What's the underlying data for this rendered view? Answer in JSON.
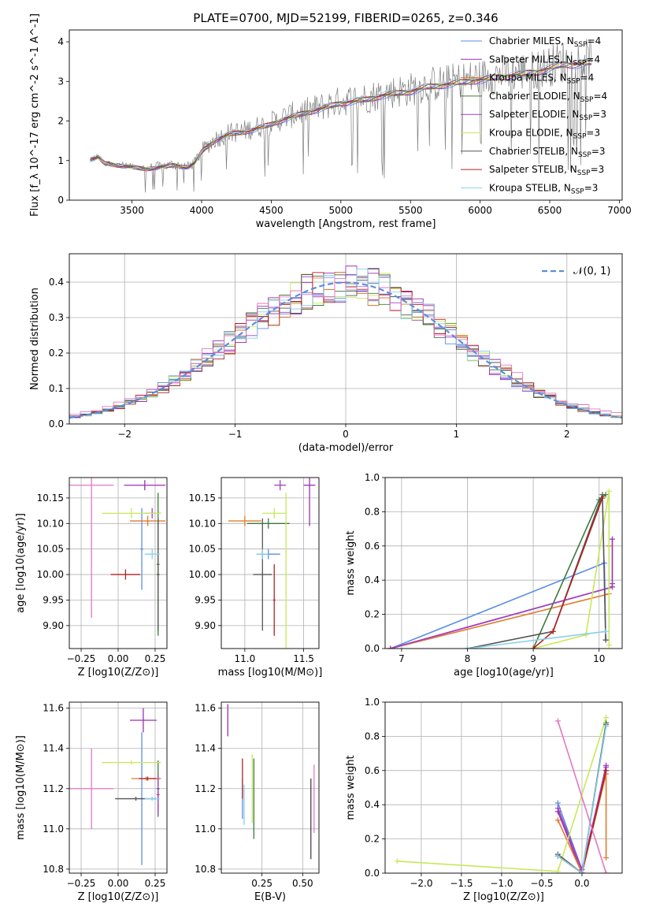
{
  "figure_title": "PLATE=0700, MJD=52199, FIBERID=0265, z=0.346",
  "colors": {
    "Chabrier MILES": "#5b8ee0",
    "Salpeter MILES": "#9b2fb5",
    "Kroupa MILES": "#e07a2a",
    "Chabrier ELODIE": "#3c7a3c",
    "Salpeter ELODIE": "#a13fbf",
    "Kroupa ELODIE": "#c8e85a",
    "Chabrier STELIB": "#555555",
    "Salpeter STELIB": "#b22222",
    "Kroupa STELIB": "#87ceeb",
    "normal": "#5b8ee0",
    "data": "#7f7f7f"
  },
  "chart_data": [
    {
      "id": "spectrum",
      "type": "line",
      "title": "PLATE=0700, MJD=52199, FIBERID=0265, z=0.346",
      "xlabel": "wavelength [Angstrom, rest frame]",
      "ylabel": "Flux [f_λ 10^-17 erg cm^-2 s^-1 A^-1]",
      "xlim": [
        3050,
        7020
      ],
      "ylim": [
        0,
        4.3
      ],
      "xticks": [
        "3500",
        "4000",
        "4500",
        "5000",
        "5500",
        "6000",
        "6500",
        "7000"
      ],
      "yticks": [
        "0",
        "1",
        "2",
        "3",
        "4"
      ],
      "grid": false,
      "legend_position": "top-right",
      "legend": [
        {
          "label": "Chabrier MILES, N",
          "sub": "SSP",
          "tail": "=4"
        },
        {
          "label": "Salpeter MILES, N",
          "sub": "SSP",
          "tail": "=4"
        },
        {
          "label": "Kroupa MILES, N",
          "sub": "SSP",
          "tail": "=4"
        },
        {
          "label": "Chabrier ELODIE, N",
          "sub": "SSP",
          "tail": "=4"
        },
        {
          "label": "Salpeter ELODIE, N",
          "sub": "SSP",
          "tail": "=3"
        },
        {
          "label": "Kroupa ELODIE, N",
          "sub": "SSP",
          "tail": "=3"
        },
        {
          "label": "Chabrier STELIB, N",
          "sub": "SSP",
          "tail": "=3"
        },
        {
          "label": "Salpeter STELIB, N",
          "sub": "SSP",
          "tail": "=3"
        },
        {
          "label": "Kroupa STELIB, N",
          "sub": "SSP",
          "tail": "=3"
        }
      ],
      "continuum": {
        "x": [
          3200,
          3260,
          3300,
          3400,
          3500,
          3600,
          3700,
          3800,
          3900,
          3950,
          4000,
          4100,
          4200,
          4300,
          4400,
          4500,
          4600,
          4700,
          4800,
          4900,
          5000,
          5100,
          5200,
          5300,
          5400,
          5500,
          5600,
          5700,
          5800,
          5900,
          6000,
          6100,
          6200,
          6300,
          6400,
          6500,
          6600,
          6700,
          6800
        ],
        "y": [
          1.05,
          1.1,
          0.95,
          0.9,
          0.85,
          0.8,
          0.85,
          0.9,
          0.85,
          0.95,
          1.25,
          1.55,
          1.7,
          1.75,
          1.85,
          1.95,
          2.1,
          2.2,
          2.3,
          2.4,
          2.5,
          2.55,
          2.6,
          2.7,
          2.75,
          2.8,
          2.9,
          2.95,
          3.0,
          3.05,
          3.1,
          3.15,
          3.2,
          3.25,
          3.3,
          3.4,
          3.5,
          3.5,
          3.55
        ]
      }
    },
    {
      "id": "residuals",
      "type": "line",
      "xlabel": "(data-model)/error",
      "ylabel": "Normed distribution",
      "xlim": [
        -2.5,
        2.5
      ],
      "ylim": [
        0,
        0.48
      ],
      "xticks": [
        "−2",
        "−1",
        "0",
        "1",
        "2"
      ],
      "yticks": [
        "0.0",
        "0.1",
        "0.2",
        "0.3",
        "0.4"
      ],
      "grid": true,
      "legend_position": "top-right",
      "legend": [
        {
          "label": "𝒩(0, 1)"
        }
      ],
      "normal_curve": "N(0,1)"
    },
    {
      "id": "age-vs-Z",
      "type": "scatter",
      "xlabel": "Z [log10(Z/Z⊙)]",
      "ylabel": "age  [log10(age/yr)]",
      "xlim": [
        -0.33,
        0.33
      ],
      "ylim": [
        9.855,
        10.19
      ],
      "xticks": [
        "−0.25",
        "0.00",
        "0.25"
      ],
      "yticks": [
        "9.90",
        "9.95",
        "10.00",
        "10.05",
        "10.10",
        "10.15"
      ],
      "grid": true,
      "points": [
        {
          "model": "Chabrier MILES",
          "x": 0.16,
          "y": 10.05,
          "xerr": 0.01,
          "yerr": 0.08
        },
        {
          "model": "Salpeter MILES",
          "x": 0.18,
          "y": 10.175,
          "xerr": 0.14,
          "yerr": 0.01
        },
        {
          "model": "Kroupa MILES",
          "x": 0.2,
          "y": 10.105,
          "xerr": 0.12,
          "yerr": 0.01
        },
        {
          "model": "Chabrier ELODIE",
          "x": 0.27,
          "y": 10.02,
          "xerr": 0.01,
          "yerr": 0.14
        },
        {
          "model": "Salpeter ELODIE",
          "x": 0.23,
          "y": 10.12,
          "xerr": 0.06,
          "yerr": 0.01
        },
        {
          "model": "Kroupa ELODIE",
          "x": 0.09,
          "y": 10.12,
          "xerr": 0.2,
          "yerr": 0.01
        },
        {
          "model": "Chabrier STELIB",
          "x": 0.27,
          "y": 10.0,
          "xerr": 0.01,
          "yerr": 0.11
        },
        {
          "model": "Salpeter STELIB",
          "x": 0.05,
          "y": 10.0,
          "xerr": 0.1,
          "yerr": 0.01
        },
        {
          "model": "Kroupa STELIB",
          "x": 0.23,
          "y": 10.04,
          "xerr": 0.05,
          "yerr": 0.01
        },
        {
          "model": "Kroupa MILES",
          "x": -0.18,
          "y": 10.175,
          "xerr": 0.15,
          "yerr": 0.26,
          "pink": true
        }
      ]
    },
    {
      "id": "age-vs-mass",
      "type": "scatter",
      "xlabel": "mass [log10(M/M⊙)]",
      "xlim": [
        10.8,
        11.63
      ],
      "ylim": [
        9.855,
        10.19
      ],
      "xticks": [
        "11.0",
        "11.5"
      ],
      "yticks": [
        "9.90",
        "9.95",
        "10.00",
        "10.05",
        "10.10",
        "10.15"
      ],
      "grid": true,
      "points": [
        {
          "model": "Chabrier MILES",
          "x": 11.2,
          "y": 10.04,
          "xerr": 0.1,
          "yerr": 0.01
        },
        {
          "model": "Salpeter MILES",
          "x": 11.55,
          "y": 10.175,
          "xerr": 0.05,
          "yerr": 0.08
        },
        {
          "model": "Kroupa MILES",
          "x": 11.0,
          "y": 10.105,
          "xerr": 0.14,
          "yerr": 0.01
        },
        {
          "model": "Chabrier ELODIE",
          "x": 11.2,
          "y": 10.1,
          "xerr": 0.18,
          "yerr": 0.01
        },
        {
          "model": "Salpeter ELODIE",
          "x": 11.3,
          "y": 10.175,
          "xerr": 0.05,
          "yerr": 0.01
        },
        {
          "model": "Kroupa ELODIE",
          "x": 11.25,
          "y": 10.12,
          "xerr": 0.1,
          "yerr": 0.01
        },
        {
          "model": "Chabrier STELIB",
          "x": 11.15,
          "y": 10.0,
          "xerr": 0.08,
          "yerr": 0.11
        },
        {
          "model": "Salpeter STELIB",
          "x": 11.25,
          "y": 9.95,
          "xerr": 0.01,
          "yerr": 0.07
        },
        {
          "model": "Kroupa STELIB",
          "x": 11.15,
          "y": 10.04,
          "xerr": 0.05,
          "yerr": 0.01
        },
        {
          "model": "Kroupa ELODIE",
          "x": 11.35,
          "y": 10.0,
          "xerr": 0.01,
          "yerr": 0.16
        }
      ]
    },
    {
      "id": "weight-vs-age",
      "type": "line",
      "xlabel": "age  [log10(age/yr)]",
      "ylabel": "mass weight",
      "xlim": [
        6.75,
        10.35
      ],
      "ylim": [
        0,
        1.0
      ],
      "xticks": [
        "7",
        "8",
        "9",
        "10"
      ],
      "yticks": [
        "0.0",
        "0.2",
        "0.4",
        "0.6",
        "0.8",
        "1.0"
      ],
      "grid": true,
      "series": [
        {
          "model": "Chabrier MILES",
          "x": [
            6.83,
            10.08,
            10.1
          ],
          "y": [
            0.0,
            0.5,
            0.05
          ]
        },
        {
          "model": "Salpeter MILES",
          "x": [
            6.83,
            10.2,
            10.2
          ],
          "y": [
            0.0,
            0.36,
            0.64
          ]
        },
        {
          "model": "Kroupa MILES",
          "x": [
            6.83,
            10.15,
            10.15
          ],
          "y": [
            0.0,
            0.32,
            0.6
          ]
        },
        {
          "model": "Chabrier ELODIE",
          "x": [
            9.0,
            10.0,
            10.1
          ],
          "y": [
            0.0,
            0.87,
            0.9
          ]
        },
        {
          "model": "Salpeter ELODIE",
          "x": [
            6.83,
            10.2,
            10.2
          ],
          "y": [
            0.0,
            0.36,
            0.38
          ]
        },
        {
          "model": "Kroupa ELODIE",
          "x": [
            9.0,
            9.8,
            10.15,
            10.15
          ],
          "y": [
            0.0,
            0.08,
            0.92,
            0.02
          ]
        },
        {
          "model": "Chabrier STELIB",
          "x": [
            8.0,
            9.3,
            10.05,
            10.1
          ],
          "y": [
            0.0,
            0.1,
            0.9,
            0.05
          ]
        },
        {
          "model": "Salpeter STELIB",
          "x": [
            9.0,
            9.3,
            10.05
          ],
          "y": [
            0.0,
            0.1,
            0.88
          ]
        },
        {
          "model": "Kroupa STELIB",
          "x": [
            8.0,
            10.1
          ],
          "y": [
            0.0,
            0.1
          ]
        }
      ]
    },
    {
      "id": "mass-vs-Z",
      "type": "scatter",
      "xlabel": "Z [log10(Z/Z⊙)]",
      "ylabel": "mass [log10(M/M⊙)]",
      "xlim": [
        -0.33,
        0.33
      ],
      "ylim": [
        10.78,
        11.63
      ],
      "xticks": [
        "−0.25",
        "0.00",
        "0.25"
      ],
      "yticks": [
        "10.8",
        "11.0",
        "11.2",
        "11.4",
        "11.6"
      ],
      "grid": true,
      "points": [
        {
          "model": "Chabrier MILES",
          "x": 0.16,
          "y": 11.15,
          "xerr": 0.01,
          "yerr": 0.33
        },
        {
          "model": "Salpeter MILES",
          "x": 0.17,
          "y": 11.54,
          "xerr": 0.09,
          "yerr": 0.06
        },
        {
          "model": "Kroupa MILES",
          "x": 0.19,
          "y": 11.25,
          "xerr": 0.1,
          "yerr": 0.01
        },
        {
          "model": "Chabrier ELODIE",
          "x": 0.27,
          "y": 11.2,
          "xerr": 0.01,
          "yerr": 0.14
        },
        {
          "model": "Salpeter ELODIE",
          "x": 0.27,
          "y": 11.17,
          "xerr": 0.01,
          "yerr": 0.1
        },
        {
          "model": "Kroupa ELODIE",
          "x": 0.09,
          "y": 11.33,
          "xerr": 0.2,
          "yerr": 0.01
        },
        {
          "model": "Chabrier STELIB",
          "x": 0.12,
          "y": 11.15,
          "xerr": 0.14,
          "yerr": 0.01
        },
        {
          "model": "Salpeter STELIB",
          "x": 0.2,
          "y": 11.25,
          "xerr": 0.06,
          "yerr": 0.01
        },
        {
          "model": "Kroupa STELIB",
          "x": 0.23,
          "y": 11.15,
          "xerr": 0.05,
          "yerr": 0.01
        },
        {
          "model": "Kroupa MILES",
          "x": -0.18,
          "y": 11.2,
          "xerr": 0.15,
          "yerr": 0.2,
          "pink": true
        }
      ]
    },
    {
      "id": "mass-vs-ebv",
      "type": "scatter",
      "xlabel": "E(B-V)",
      "xlim": [
        0.0,
        0.6
      ],
      "ylim": [
        10.78,
        11.63
      ],
      "xticks": [
        "0.25",
        "0.50"
      ],
      "yticks": [
        "10.8",
        "11.0",
        "11.2",
        "11.4",
        "11.6"
      ],
      "grid": true,
      "points": [
        {
          "model": "Chabrier MILES",
          "x": 0.13,
          "y": 11.15,
          "xerr": 0.0,
          "yerr": 0.1
        },
        {
          "model": "Salpeter MILES",
          "x": 0.04,
          "y": 11.54,
          "xerr": 0.0,
          "yerr": 0.08
        },
        {
          "model": "Kroupa MILES",
          "x": 0.55,
          "y": 11.2,
          "xerr": 0.0,
          "yerr": 0.05
        },
        {
          "model": "Chabrier ELODIE",
          "x": 0.2,
          "y": 11.15,
          "xerr": 0.0,
          "yerr": 0.2
        },
        {
          "model": "Salpeter ELODIE",
          "x": 0.55,
          "y": 11.05,
          "xerr": 0.0,
          "yerr": 0.2
        },
        {
          "model": "Kroupa ELODIE",
          "x": 0.19,
          "y": 11.2,
          "xerr": 0.0,
          "yerr": 0.17
        },
        {
          "model": "Chabrier STELIB",
          "x": 0.55,
          "y": 11.05,
          "xerr": 0.0,
          "yerr": 0.2
        },
        {
          "model": "Salpeter STELIB",
          "x": 0.13,
          "y": 11.25,
          "xerr": 0.0,
          "yerr": 0.1
        },
        {
          "model": "Kroupa STELIB",
          "x": 0.14,
          "y": 11.12,
          "xerr": 0.0,
          "yerr": 0.1
        },
        {
          "model": "Kroupa MILES",
          "x": 0.57,
          "y": 11.15,
          "xerr": 0.0,
          "yerr": 0.17,
          "pink": true
        }
      ]
    },
    {
      "id": "weight-vs-Z",
      "type": "line",
      "xlabel": "Z [log10(Z/Z⊙)]",
      "ylabel": "mass weight",
      "xlim": [
        -2.45,
        0.5
      ],
      "ylim": [
        0,
        1.0
      ],
      "xticks": [
        "−2.0",
        "−1.5",
        "−1.0",
        "−0.5",
        "0.0"
      ],
      "yticks": [
        "0.0",
        "0.2",
        "0.4",
        "0.6",
        "0.8",
        "1.0"
      ],
      "grid": true,
      "series": [
        {
          "model": "Chabrier MILES",
          "x": [
            -0.3,
            0.0,
            0.3
          ],
          "y": [
            0.41,
            0.02,
            0.6
          ]
        },
        {
          "model": "Salpeter MILES",
          "x": [
            -0.3,
            0.0,
            0.3
          ],
          "y": [
            0.36,
            0.0,
            0.63
          ]
        },
        {
          "model": "Kroupa MILES",
          "x": [
            -0.3,
            0.0,
            0.3,
            0.3
          ],
          "y": [
            0.31,
            0.0,
            0.58,
            0.09
          ]
        },
        {
          "model": "Chabrier ELODIE",
          "x": [
            -0.3,
            0.0,
            0.3
          ],
          "y": [
            0.1,
            0.0,
            0.88
          ]
        },
        {
          "model": "Salpeter ELODIE",
          "x": [
            -0.3,
            0.0,
            0.3
          ],
          "y": [
            0.38,
            0.02,
            0.62
          ]
        },
        {
          "model": "Kroupa ELODIE",
          "x": [
            -2.3,
            -0.3,
            0.3
          ],
          "y": [
            0.07,
            0.01,
            0.91
          ]
        },
        {
          "model": "Chabrier STELIB",
          "x": [
            -0.3,
            0.0,
            0.3
          ],
          "y": [
            0.11,
            0.0,
            0.87
          ]
        },
        {
          "model": "Salpeter STELIB",
          "x": [
            -0.3,
            0.0,
            0.3
          ],
          "y": [
            0.1,
            0.0,
            0.6
          ]
        },
        {
          "model": "Kroupa STELIB",
          "x": [
            -0.3,
            0.0,
            0.3
          ],
          "y": [
            0.1,
            0.0,
            0.86
          ]
        },
        {
          "model": "Kroupa MILES",
          "x": [
            -0.3,
            0.3
          ],
          "y": [
            0.89,
            0.0
          ],
          "pink": true
        }
      ]
    }
  ]
}
